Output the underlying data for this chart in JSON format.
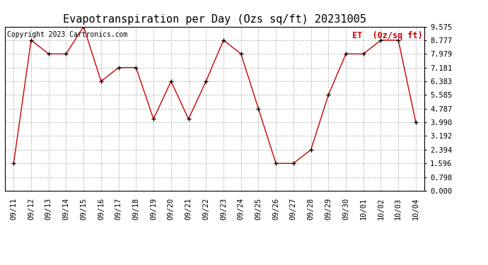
{
  "title": "Evapotranspiration per Day (Ozs sq/ft) 20231005",
  "legend_label": "ET  (0z/sq ft)",
  "copyright_text": "Copyright 2023 Cartronics.com",
  "dates": [
    "09/11",
    "09/12",
    "09/13",
    "09/14",
    "09/15",
    "09/16",
    "09/17",
    "09/18",
    "09/19",
    "09/20",
    "09/21",
    "09/22",
    "09/23",
    "09/24",
    "09/25",
    "09/26",
    "09/27",
    "09/28",
    "09/29",
    "09/30",
    "10/01",
    "10/02",
    "10/03",
    "10/04"
  ],
  "values": [
    1.596,
    8.777,
    7.979,
    7.979,
    9.575,
    6.383,
    7.181,
    7.181,
    4.185,
    6.383,
    4.185,
    6.383,
    8.777,
    7.979,
    4.787,
    1.596,
    1.596,
    2.394,
    5.585,
    7.979,
    7.979,
    8.777,
    8.777,
    3.99
  ],
  "line_color": "#cc0000",
  "marker_color": "#000000",
  "grid_color": "#bbbbbb",
  "background_color": "#ffffff",
  "title_color": "#000000",
  "legend_color": "#cc0000",
  "copyright_color": "#000000",
  "ylim": [
    0.0,
    9.575
  ],
  "yticks": [
    0.0,
    0.798,
    1.596,
    2.394,
    3.192,
    3.99,
    4.787,
    5.585,
    6.383,
    7.181,
    7.979,
    8.777,
    9.575
  ],
  "title_fontsize": 11,
  "tick_fontsize": 7.5,
  "legend_fontsize": 8.5,
  "copyright_fontsize": 7
}
